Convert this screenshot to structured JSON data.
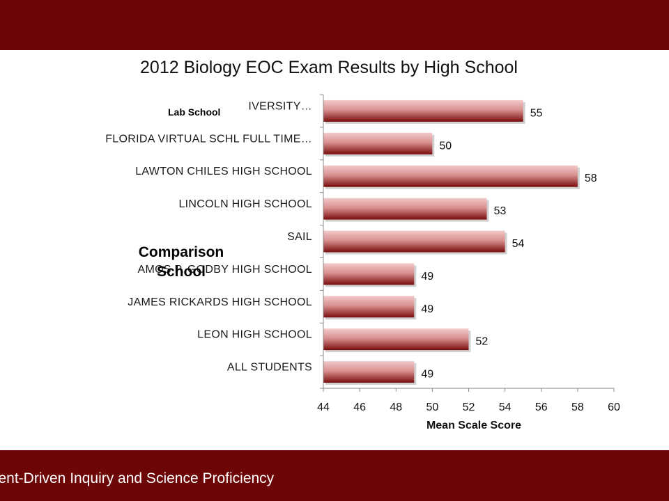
{
  "footer": {
    "text": "ment-Driven Inquiry and Science Proficiency"
  },
  "overlays": {
    "lab_school": "Lab School",
    "comparison_school": "Comparison School"
  },
  "colors": {
    "band": "#6d0606",
    "bar_light": "#e9b3b3",
    "bar_dark": "#7a0c0c"
  },
  "chart_data": {
    "type": "bar",
    "orientation": "horizontal",
    "title": "2012 Biology EOC Exam Results by High School",
    "xlabel": "Mean Scale Score",
    "ylabel": "",
    "xlim": [
      44,
      60
    ],
    "xticks": [
      44,
      46,
      48,
      50,
      52,
      54,
      56,
      58,
      60
    ],
    "grid": false,
    "legend": "none",
    "categories": [
      "IVERSITY…",
      "FLORIDA VIRTUAL SCHL FULL TIME…",
      "LAWTON CHILES HIGH SCHOOL",
      "LINCOLN HIGH SCHOOL",
      "SAIL",
      "AMOS P. GODBY HIGH SCHOOL",
      "JAMES RICKARDS HIGH SCHOOL",
      "LEON HIGH SCHOOL",
      "ALL STUDENTS"
    ],
    "values": [
      55,
      50,
      58,
      53,
      54,
      49,
      49,
      52,
      49
    ]
  }
}
